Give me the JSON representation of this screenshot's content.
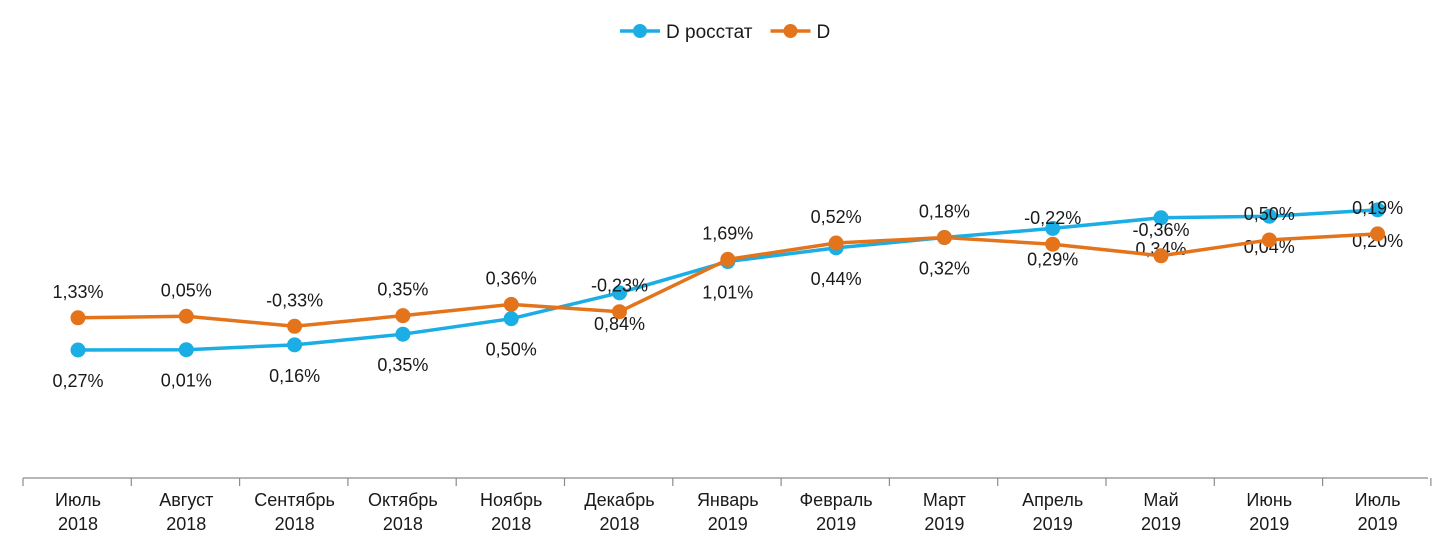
{
  "chart_data": {
    "type": "line",
    "categories": [
      [
        "Июль",
        "2018"
      ],
      [
        "Август",
        "2018"
      ],
      [
        "Сентябрь",
        "2018"
      ],
      [
        "Октябрь",
        "2018"
      ],
      [
        "Ноябрь",
        "2018"
      ],
      [
        "Декабрь",
        "2018"
      ],
      [
        "Январь",
        "2019"
      ],
      [
        "Февраль",
        "2019"
      ],
      [
        "Март",
        "2019"
      ],
      [
        "Апрель",
        "2019"
      ],
      [
        "Май",
        "2019"
      ],
      [
        "Июнь",
        "2019"
      ],
      [
        "Июль",
        "2019"
      ]
    ],
    "series": [
      {
        "name": "D росстат",
        "color": "#1aaee5",
        "cumulative": [
          100.27,
          100.28,
          100.44,
          100.79,
          101.3,
          102.15,
          103.18,
          103.63,
          103.97,
          104.27,
          104.62,
          104.67,
          104.88
        ],
        "labels": [
          "0,27%",
          "0,01%",
          "0,16%",
          "0,35%",
          "0,50%",
          "0,84%",
          "1,01%",
          "0,44%",
          "0,32%",
          "0,29%",
          "0,34%",
          "0,04%",
          "0,20%"
        ],
        "label_position": "below"
      },
      {
        "name": "D",
        "color": "#e3741c",
        "cumulative": [
          101.33,
          101.38,
          101.05,
          101.4,
          101.77,
          101.53,
          103.25,
          103.79,
          103.97,
          103.75,
          103.37,
          103.89,
          104.09
        ],
        "labels": [
          "1,33%",
          "0,05%",
          "-0,33%",
          "0,35%",
          "0,36%",
          "-0,23%",
          "1,69%",
          "0,52%",
          "0,18%",
          "-0,22%",
          "-0,36%",
          "0,50%",
          "0,19%"
        ],
        "label_position": "above"
      }
    ],
    "legend_position": "top-center",
    "grid": false
  }
}
